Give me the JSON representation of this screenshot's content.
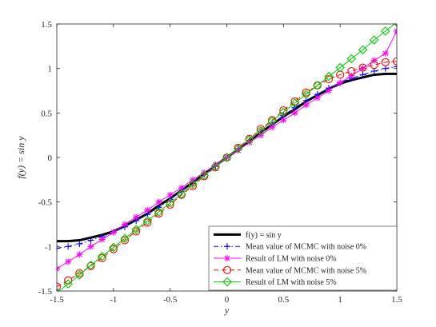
{
  "chart_data": {
    "type": "line",
    "xlabel": "y",
    "ylabel": "f(y) = sin y",
    "xlim": [
      -1.5,
      1.5
    ],
    "ylim": [
      -1.5,
      1.5
    ],
    "x_ticks": [
      -1.5,
      -1,
      -0.5,
      0,
      0.5,
      1,
      1.5
    ],
    "x_tick_labels": [
      "-1.5",
      "-1",
      "-0.5",
      "0",
      "0.5",
      "1",
      "1.5"
    ],
    "y_ticks": [
      -1.5,
      -1,
      -0.5,
      0,
      0.5,
      1,
      1.5
    ],
    "y_tick_labels": [
      "-1.5",
      "-1",
      "-0.5",
      "0",
      "0.5",
      "1",
      "1.5"
    ],
    "grid": false,
    "legend_position": "bottom-right",
    "x": [
      -1.5,
      -1.4,
      -1.3,
      -1.2,
      -1.1,
      -1.0,
      -0.9,
      -0.8,
      -0.7,
      -0.6,
      -0.5,
      -0.4,
      -0.3,
      -0.2,
      -0.1,
      0.0,
      0.1,
      0.2,
      0.3,
      0.4,
      0.5,
      0.6,
      0.7,
      0.8,
      0.9,
      1.0,
      1.1,
      1.2,
      1.3,
      1.4,
      1.5
    ],
    "series": [
      {
        "name": "f(y) = sin y",
        "color": "#000000",
        "line": "solid",
        "marker": "none",
        "values": [
          -0.94,
          -0.94,
          -0.93,
          -0.9,
          -0.87,
          -0.83,
          -0.77,
          -0.7,
          -0.63,
          -0.54,
          -0.46,
          -0.37,
          -0.28,
          -0.19,
          -0.09,
          0.0,
          0.09,
          0.19,
          0.28,
          0.37,
          0.46,
          0.54,
          0.63,
          0.7,
          0.77,
          0.83,
          0.87,
          0.9,
          0.93,
          0.94,
          0.94
        ]
      },
      {
        "name": "Mean value of MCMC with noise 0%",
        "color": "#0000ff",
        "line": "dashdot",
        "marker": "plus",
        "values": [
          -1.02,
          -1.0,
          -0.97,
          -0.93,
          -0.89,
          -0.84,
          -0.78,
          -0.71,
          -0.64,
          -0.56,
          -0.47,
          -0.38,
          -0.29,
          -0.19,
          -0.1,
          0.0,
          0.1,
          0.19,
          0.29,
          0.38,
          0.47,
          0.56,
          0.64,
          0.71,
          0.78,
          0.84,
          0.89,
          0.93,
          0.97,
          1.0,
          1.02
        ]
      },
      {
        "name": "Result of LM with noise 0%",
        "color": "#ff00ff",
        "line": "solid",
        "marker": "asterisk",
        "values": [
          -1.25,
          -1.17,
          -1.09,
          -1.0,
          -0.92,
          -0.84,
          -0.75,
          -0.67,
          -0.59,
          -0.5,
          -0.42,
          -0.34,
          -0.25,
          -0.17,
          -0.08,
          0.0,
          0.08,
          0.17,
          0.25,
          0.34,
          0.42,
          0.5,
          0.59,
          0.67,
          0.75,
          0.84,
          0.92,
          1.0,
          1.09,
          1.17,
          1.42
        ]
      },
      {
        "name": "Mean value of MCMC with noise 5%",
        "color": "#ff0000",
        "line": "dashed",
        "marker": "circle",
        "values": [
          -1.45,
          -1.38,
          -1.3,
          -1.22,
          -1.13,
          -1.03,
          -0.93,
          -0.83,
          -0.73,
          -0.63,
          -0.53,
          -0.42,
          -0.32,
          -0.21,
          -0.11,
          0.0,
          0.11,
          0.21,
          0.32,
          0.42,
          0.53,
          0.63,
          0.73,
          0.81,
          0.88,
          0.93,
          0.97,
          1.01,
          1.04,
          1.07,
          1.08
        ]
      },
      {
        "name": "Result of LM with noise 5%",
        "color": "#00cc00",
        "line": "solid",
        "marker": "diamond",
        "values": [
          -1.52,
          -1.42,
          -1.32,
          -1.21,
          -1.11,
          -1.01,
          -0.91,
          -0.81,
          -0.71,
          -0.61,
          -0.51,
          -0.41,
          -0.3,
          -0.2,
          -0.1,
          0.0,
          0.1,
          0.2,
          0.3,
          0.41,
          0.51,
          0.61,
          0.71,
          0.81,
          0.91,
          1.01,
          1.11,
          1.21,
          1.32,
          1.42,
          1.52
        ]
      }
    ]
  }
}
